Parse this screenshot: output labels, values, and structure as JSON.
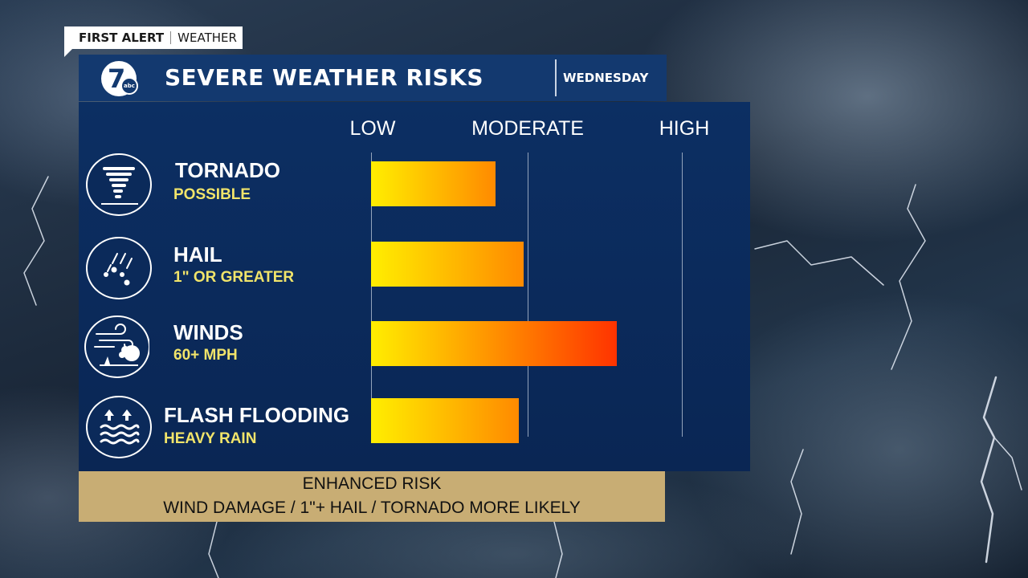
{
  "tag": {
    "brand": "FIRST ALERT",
    "section": "WEATHER"
  },
  "header": {
    "logo_number": "7",
    "logo_network": "abc",
    "title": "SEVERE WEATHER RISKS",
    "day": "WEDNESDAY"
  },
  "colors": {
    "header_bg": "#13396f",
    "panel_bg": "#0c2f63",
    "bar_start": "#ffee00",
    "bar_end": "#ff3300",
    "subtitle": "#f1e46a",
    "footer_bg": "#c8ad74"
  },
  "chart_data": {
    "type": "bar",
    "orientation": "horizontal",
    "scale_labels": [
      "LOW",
      "MODERATE",
      "HIGH"
    ],
    "categories": [
      "TORNADO",
      "HAIL",
      "WINDS",
      "FLASH FLOODING"
    ],
    "subtitles": [
      "POSSIBLE",
      "1\" OR GREATER",
      "60+ MPH",
      "HEAVY RAIN"
    ],
    "icons": [
      "tornado-icon",
      "hail-icon",
      "wind-icon",
      "flood-icon"
    ],
    "values": [
      0.8,
      0.98,
      1.58,
      0.95
    ],
    "value_units": "risk level where 0 = LOW, 1 = MODERATE, 2 = HIGH",
    "xlim": [
      0,
      2
    ],
    "grid": true
  },
  "footer": {
    "line1": "ENHANCED RISK",
    "line2": "WIND DAMAGE /  1\"+ HAIL / TORNADO MORE LIKELY"
  }
}
